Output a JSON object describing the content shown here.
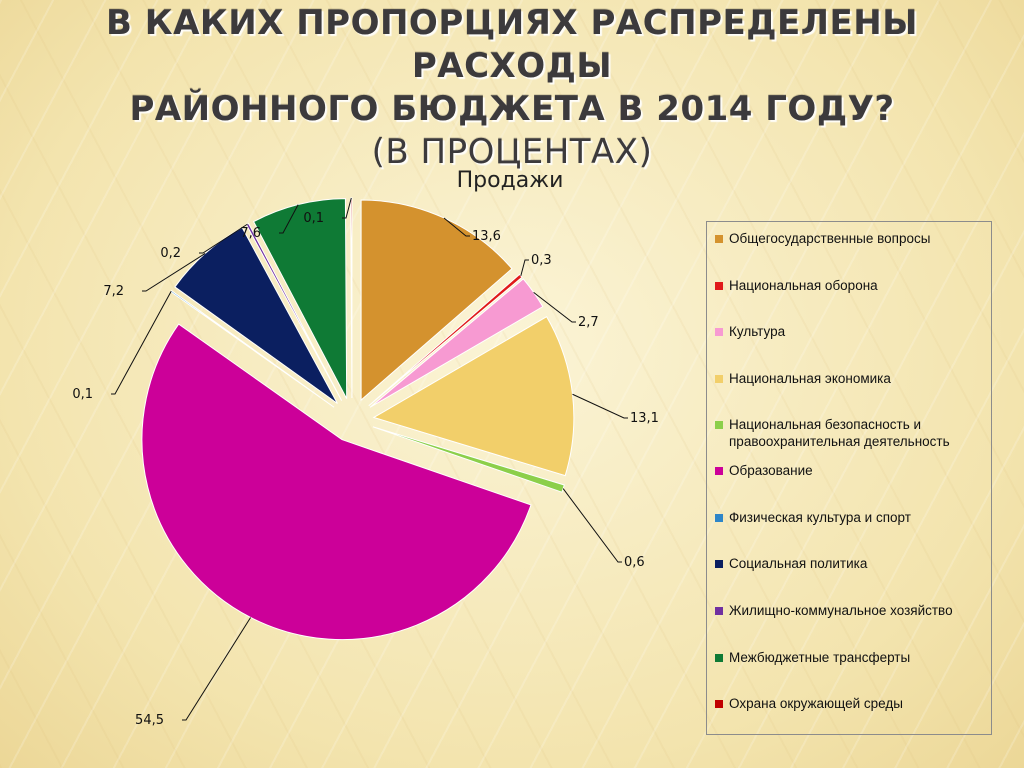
{
  "slide": {
    "title_line1": "В КАКИХ ПРОПОРЦИЯХ РАСПРЕДЕЛЕНЫ РАСХОДЫ",
    "title_line2": "РАЙОННОГО БЮДЖЕТА В 2014 ГОДУ?",
    "title_line3": "(В ПРОЦЕНТАХ)"
  },
  "chart_data": {
    "type": "pie",
    "title": "Продажи",
    "exploded": true,
    "legend_position": "right",
    "slices": [
      {
        "label": "Общегосударственные вопросы",
        "value": 13.6,
        "value_label": "13,6",
        "color": "#d4922e"
      },
      {
        "label": "Национальная оборона",
        "value": 0.3,
        "value_label": "0,3",
        "color": "#e01a1a"
      },
      {
        "label": "Культура",
        "value": 2.7,
        "value_label": "2,7",
        "color": "#f79ad2"
      },
      {
        "label": "Национальная экономика",
        "value": 13.1,
        "value_label": "13,1",
        "color": "#f2cf6a"
      },
      {
        "label": "Национальная безопасность и правоохранительная деятельность",
        "value": 0.6,
        "value_label": "0,6",
        "color": "#8ccf4a"
      },
      {
        "label": "Образование",
        "value": 54.5,
        "value_label": "54,5",
        "color": "#cc0099"
      },
      {
        "label": "Физическая культура и спорт",
        "value": 0.1,
        "value_label": "0,1",
        "color": "#2e86c8"
      },
      {
        "label": "Социальная политика",
        "value": 7.2,
        "value_label": "7,2",
        "color": "#0b1f60"
      },
      {
        "label": "Жилищно-коммунальное хозяйство",
        "value": 0.2,
        "value_label": "0,2",
        "color": "#7030a0"
      },
      {
        "label": "Межбюджетные трансферты",
        "value": 7.6,
        "value_label": "7,6",
        "color": "#0f7a35"
      },
      {
        "label": "Охрана окружающей среды",
        "value": 0.1,
        "value_label": "0,1",
        "color": "#c00000"
      }
    ]
  }
}
